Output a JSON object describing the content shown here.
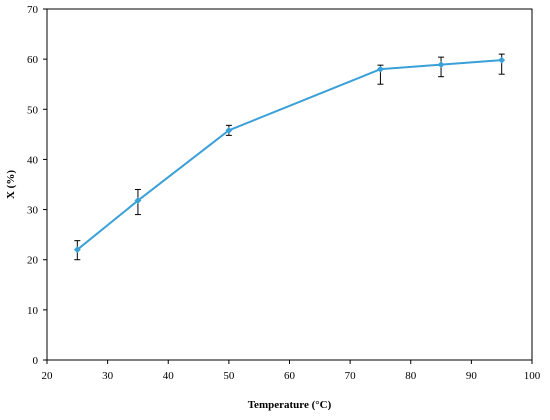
{
  "chart_data": {
    "type": "line",
    "title": "",
    "xlabel": "Temperature (°C)",
    "ylabel": "X (%)",
    "xlim": [
      20,
      100
    ],
    "ylim": [
      0,
      70
    ],
    "xticks": [
      20,
      30,
      40,
      50,
      60,
      70,
      80,
      90,
      100
    ],
    "yticks": [
      0,
      10,
      20,
      30,
      40,
      50,
      60,
      70
    ],
    "grid": false,
    "legend": "none",
    "series": [
      {
        "color": "#3aa0d8",
        "marker": "diamond",
        "x": [
          25,
          35,
          50,
          75,
          85,
          95
        ],
        "y": [
          22,
          31.8,
          45.8,
          58,
          58.9,
          59.8
        ],
        "error_low": [
          2,
          2.8,
          1,
          3,
          2.4,
          2.8
        ],
        "error_high": [
          1.8,
          2.2,
          1,
          0.8,
          1.5,
          1.2
        ]
      }
    ]
  }
}
